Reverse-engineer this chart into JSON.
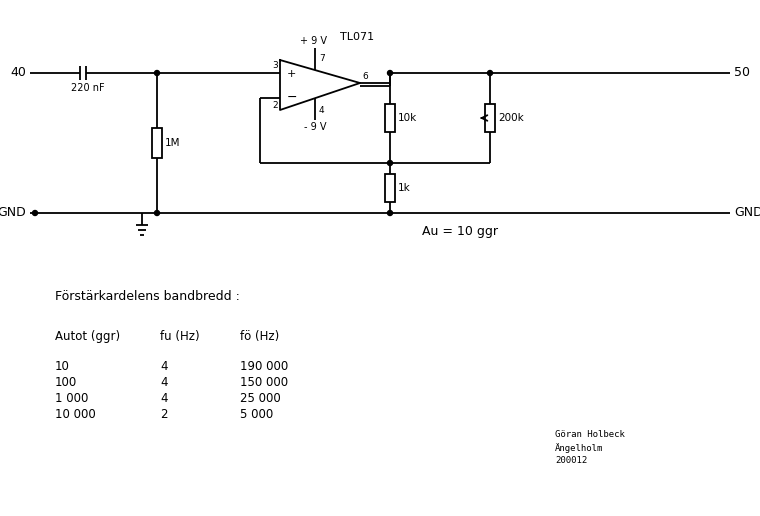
{
  "bg_color": "#ffffff",
  "line_color": "#000000",
  "node40_label": "40",
  "node50_label": "50",
  "gnd_label": "GND",
  "cap_label": "220 nF",
  "res1M_label": "1M",
  "res10k_label": "10k",
  "res200k_label": "200k",
  "res1k_label": "1k",
  "opamp_label": "TL071",
  "vpos_label": "+ 9 V",
  "vneg_label": "- 9 V",
  "au_label": "Au = 10 ggr",
  "heading": "Förstärkardelens bandbredd :",
  "col_headers": [
    "Autot (ggr)",
    "fu (Hz)",
    "fö (Hz)"
  ],
  "table_data": [
    [
      "10",
      "4",
      "190 000"
    ],
    [
      "100",
      "4",
      "150 000"
    ],
    [
      "1 000",
      "4",
      "25 000"
    ],
    [
      "10 000",
      "2",
      "5 000"
    ]
  ],
  "signature_line1": "Göran Holbeck",
  "signature_line2": "Ängelholm",
  "signature_line3": "200012",
  "pin3_label": "3",
  "pin2_label": "2",
  "pin6_label": "6",
  "pin7_label": "7",
  "pin4_label": "4"
}
